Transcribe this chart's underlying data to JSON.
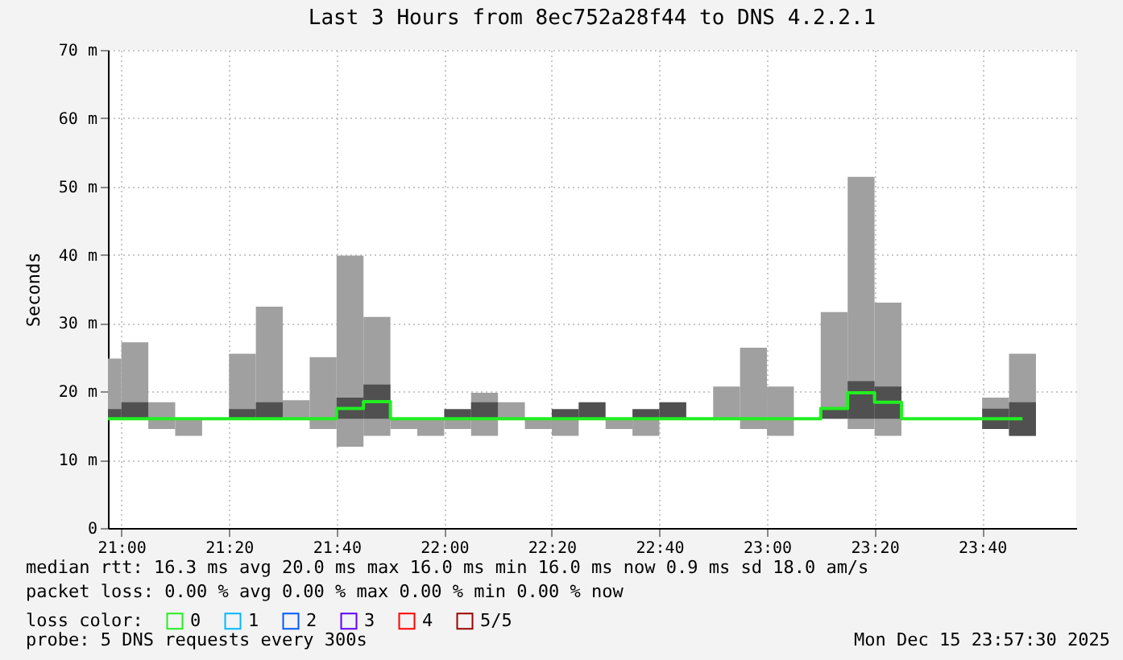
{
  "chart_data": {
    "type": "bar",
    "title": "Last 3 Hours from 8ec752a28f44 to DNS 4.2.2.1",
    "ylabel": "Seconds",
    "legend_title": "loss color:",
    "x": [
      20.9583,
      21.0417,
      21.125,
      21.2083,
      21.2917,
      21.375,
      21.4583,
      21.5417,
      21.625,
      21.7083,
      21.7917,
      21.875,
      21.9583,
      22.0417,
      22.125,
      22.2083,
      22.2917,
      22.375,
      22.4583,
      22.5417,
      22.625,
      22.7083,
      22.7917,
      22.875,
      22.9583,
      23.0417,
      23.125,
      23.2083,
      23.2917,
      23.375,
      23.4583,
      23.5417,
      23.625,
      23.7083,
      23.7917
    ],
    "series": [
      {
        "color": "#a0a0a0",
        "base": [
          16,
          16,
          14.5,
          13.5,
          null,
          16,
          16,
          16,
          14.5,
          11.9,
          13.5,
          14.5,
          13.5,
          14.5,
          13.5,
          16,
          14.5,
          13.5,
          null,
          14.5,
          13.5,
          null,
          null,
          16,
          14.5,
          13.5,
          null,
          16,
          14.5,
          13.5,
          null,
          null,
          null,
          17.5,
          13.5
        ],
        "values": [
          8.8,
          11.2,
          3.9,
          2.5,
          null,
          9.5,
          16.4,
          2.7,
          10.5,
          28,
          17.4,
          1.5,
          2.5,
          1.5,
          6.3,
          2.4,
          1.5,
          2.5,
          null,
          1.5,
          2.5,
          null,
          null,
          4.7,
          11.9,
          7.2,
          null,
          15.6,
          36.9,
          19.5,
          null,
          null,
          null,
          1.6,
          12
        ]
      },
      {
        "color": "#505050",
        "base": [
          16,
          16,
          null,
          null,
          null,
          16,
          16,
          null,
          null,
          16,
          16,
          null,
          null,
          16,
          16,
          null,
          null,
          16,
          16,
          null,
          16,
          16,
          null,
          null,
          null,
          null,
          null,
          16,
          16,
          16,
          null,
          null,
          null,
          14.5,
          13.5
        ],
        "values": [
          1.4,
          2.4,
          null,
          null,
          null,
          1.4,
          2.4,
          null,
          null,
          3.1,
          5,
          null,
          null,
          1.4,
          2.4,
          null,
          null,
          1.4,
          2.4,
          null,
          1.4,
          2.4,
          null,
          null,
          null,
          null,
          null,
          1.6,
          5.5,
          4.7,
          null,
          null,
          null,
          3,
          4.9
        ]
      },
      {
        "type": "step",
        "name": "0",
        "color": "#22ee22",
        "values": [
          16,
          16,
          16,
          16,
          16,
          16,
          16,
          16,
          16,
          17.5,
          18.5,
          16,
          16,
          16,
          16,
          16,
          16,
          16,
          16,
          16,
          16,
          16,
          16,
          16,
          16,
          16,
          16,
          17.5,
          19.8,
          18.4,
          16,
          16,
          16,
          16,
          16
        ]
      },
      {
        "type": "step",
        "name": "1",
        "color": "#00b8ff",
        "values": [
          null,
          null,
          null,
          null,
          null,
          null,
          null,
          null,
          null,
          null,
          null,
          null,
          null,
          null,
          null,
          null,
          null,
          null,
          null,
          null,
          null,
          null,
          null,
          null,
          null,
          null,
          null,
          null,
          null,
          null,
          null,
          null,
          null,
          null,
          null
        ]
      },
      {
        "type": "step",
        "name": "2",
        "color": "#0059ff",
        "values": [
          null,
          null,
          null,
          null,
          null,
          null,
          null,
          null,
          null,
          null,
          null,
          null,
          null,
          null,
          null,
          null,
          null,
          null,
          null,
          null,
          null,
          null,
          null,
          null,
          null,
          null,
          null,
          null,
          null,
          null,
          null,
          null,
          null,
          null,
          null
        ]
      },
      {
        "type": "step",
        "name": "3",
        "color": "#5e00ff",
        "values": [
          null,
          null,
          null,
          null,
          null,
          null,
          null,
          null,
          null,
          null,
          null,
          null,
          null,
          null,
          null,
          null,
          null,
          null,
          null,
          null,
          null,
          null,
          null,
          null,
          null,
          null,
          null,
          null,
          null,
          null,
          null,
          null,
          null,
          null,
          null
        ]
      },
      {
        "type": "step",
        "name": "4",
        "color": "#ff0000",
        "values": [
          null,
          null,
          null,
          null,
          null,
          null,
          null,
          null,
          null,
          null,
          null,
          null,
          null,
          null,
          null,
          null,
          null,
          null,
          null,
          null,
          null,
          null,
          null,
          null,
          null,
          null,
          null,
          null,
          null,
          null,
          null,
          null,
          null,
          null,
          null
        ]
      },
      {
        "type": "step",
        "name": "5/5",
        "color": "#9a0000",
        "values": [
          null,
          null,
          null,
          null,
          null,
          null,
          null,
          null,
          null,
          null,
          null,
          null,
          null,
          null,
          null,
          null,
          null,
          null,
          null,
          null,
          null,
          null,
          null,
          null,
          null,
          null,
          null,
          null,
          null,
          null,
          null,
          null,
          null,
          null,
          null
        ]
      }
    ],
    "xlim": [
      20.9583,
      23.9583
    ],
    "xticks": [
      {
        "value": 21,
        "label": "21:00"
      },
      {
        "value": 21.3333,
        "label": "21:20"
      },
      {
        "value": 21.6667,
        "label": "21:40"
      },
      {
        "value": 22,
        "label": "22:00"
      },
      {
        "value": 22.3333,
        "label": "22:20"
      },
      {
        "value": 22.6667,
        "label": "22:40"
      },
      {
        "value": 23,
        "label": "23:00"
      },
      {
        "value": 23.3333,
        "label": "23:20"
      },
      {
        "value": 23.6667,
        "label": "23:40"
      }
    ],
    "ylim": [
      0,
      70
    ],
    "yticks": [
      0,
      {
        "value": 10,
        "label": "10 m"
      },
      {
        "value": 20,
        "label": "20 m"
      },
      {
        "value": 30,
        "label": "30 m"
      },
      {
        "value": 40,
        "label": "40 m"
      },
      {
        "value": 50,
        "label": "50 m"
      },
      {
        "value": 60,
        "label": "60 m"
      },
      {
        "value": 70,
        "label": "70 m"
      }
    ],
    "grid": true,
    "legend": "bottom",
    "annotations": [
      "median rtt: 16.3 ms avg 20.0 ms max 16.0 ms min 16.0 ms now 0.9 ms sd 18.0 am/s",
      "packet loss: 0.00 % avg 0.00 % max 0.00 % min 0.00 % now",
      "probe: 5 DNS requests every 300s",
      "Mon Dec 15 23:57:30 2025"
    ]
  }
}
